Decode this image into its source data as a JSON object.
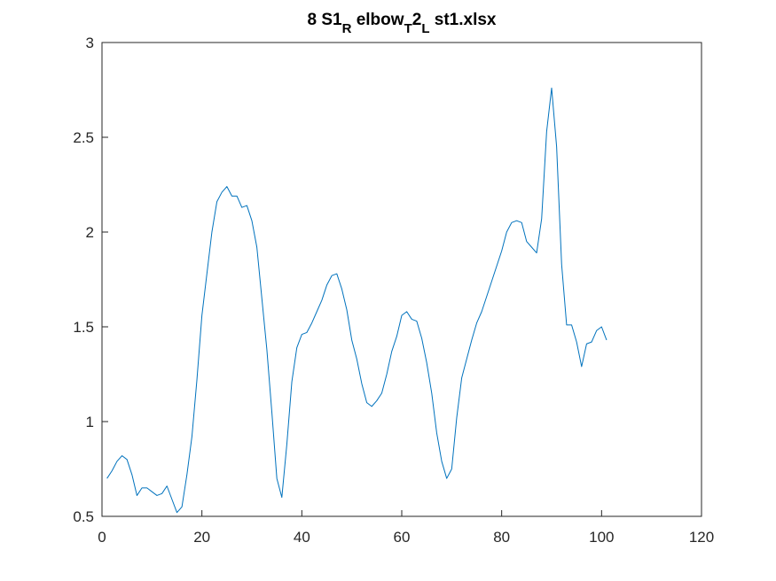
{
  "chart_data": {
    "type": "line",
    "title": [
      {
        "text": "8 S1"
      },
      {
        "text": "R",
        "subscript": true
      },
      {
        "text": " elbow"
      },
      {
        "text": "T",
        "subscript": true
      },
      {
        "text": "2"
      },
      {
        "text": "L",
        "subscript": true
      },
      {
        "text": " st1.xlsx"
      }
    ],
    "x": [
      1,
      2,
      3,
      4,
      5,
      6,
      7,
      8,
      9,
      10,
      11,
      12,
      13,
      14,
      15,
      16,
      17,
      18,
      19,
      20,
      21,
      22,
      23,
      24,
      25,
      26,
      27,
      28,
      29,
      30,
      31,
      32,
      33,
      34,
      35,
      36,
      37,
      38,
      39,
      40,
      41,
      42,
      43,
      44,
      45,
      46,
      47,
      48,
      49,
      50,
      51,
      52,
      53,
      54,
      55,
      56,
      57,
      58,
      59,
      60,
      61,
      62,
      63,
      64,
      65,
      66,
      67,
      68,
      69,
      70,
      71,
      72,
      73,
      74,
      75,
      76,
      77,
      78,
      79,
      80,
      81,
      82,
      83,
      84,
      85,
      86,
      87,
      88,
      89,
      90,
      91,
      92,
      93,
      94,
      95,
      96,
      97,
      98,
      99,
      100,
      101
    ],
    "values": [
      0.7,
      0.74,
      0.79,
      0.82,
      0.8,
      0.72,
      0.61,
      0.65,
      0.65,
      0.63,
      0.61,
      0.62,
      0.66,
      0.59,
      0.52,
      0.55,
      0.72,
      0.92,
      1.22,
      1.56,
      1.78,
      2.0,
      2.16,
      2.21,
      2.24,
      2.19,
      2.19,
      2.13,
      2.14,
      2.06,
      1.92,
      1.65,
      1.38,
      1.05,
      0.7,
      0.6,
      0.88,
      1.21,
      1.39,
      1.46,
      1.47,
      1.52,
      1.58,
      1.64,
      1.72,
      1.77,
      1.78,
      1.7,
      1.59,
      1.43,
      1.33,
      1.2,
      1.1,
      1.08,
      1.11,
      1.15,
      1.25,
      1.37,
      1.45,
      1.56,
      1.58,
      1.54,
      1.53,
      1.44,
      1.31,
      1.15,
      0.94,
      0.79,
      0.7,
      0.75,
      1.02,
      1.23,
      1.33,
      1.43,
      1.52,
      1.58,
      1.66,
      1.74,
      1.82,
      1.9,
      2.0,
      2.05,
      2.06,
      2.05,
      1.95,
      1.92,
      1.89,
      2.07,
      2.53,
      2.76,
      2.45,
      1.83,
      1.51,
      1.51,
      1.42,
      1.29,
      1.41,
      1.42,
      1.48,
      1.5,
      1.43
    ],
    "color": "#0072bd",
    "xlim": [
      0,
      120
    ],
    "xticks": [
      0,
      20,
      40,
      60,
      80,
      100,
      120
    ],
    "ylim": [
      0.5,
      3
    ],
    "yticks": [
      0.5,
      1,
      1.5,
      2,
      2.5,
      3
    ],
    "grid": false
  }
}
